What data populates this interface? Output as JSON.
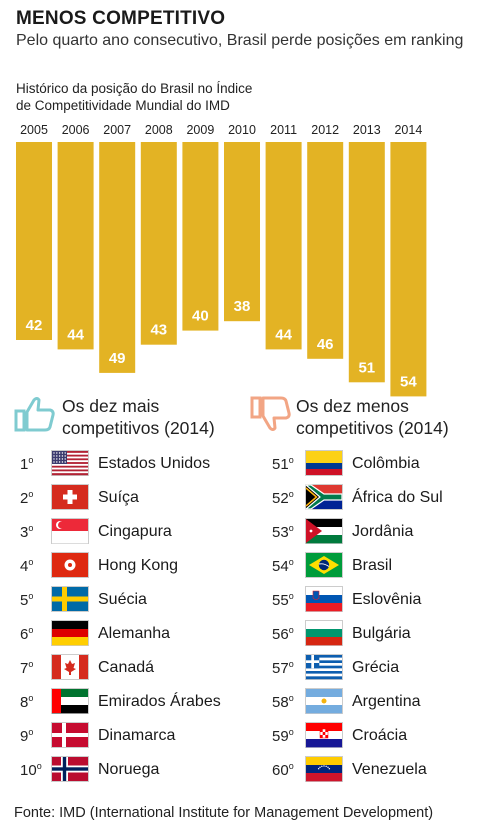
{
  "header": {
    "title": "MENOS COMPETITIVO",
    "subtitle": "Pelo quarto ano consecutivo, Brasil perde posições em ranking"
  },
  "chart_data": {
    "type": "bar",
    "title": "Histórico da posição do Brasil no Índice de Competitividade Mundial do IMD",
    "title_lines": [
      "Histórico da posição do Brasil no Índice",
      "de Competitividade Mundial do IMD"
    ],
    "categories": [
      "2005",
      "2006",
      "2007",
      "2008",
      "2009",
      "2010",
      "2011",
      "2012",
      "2013",
      "2014"
    ],
    "values": [
      42,
      44,
      49,
      43,
      40,
      38,
      44,
      46,
      51,
      54
    ],
    "value_labels": [
      "42",
      "44",
      "49",
      "43",
      "40",
      "38",
      "44",
      "46",
      "51",
      "54"
    ],
    "orientation": "vertical-downward",
    "bar_color": "#e3b324",
    "grid": false,
    "legend": false
  },
  "top_list": {
    "title_lines": [
      "Os dez mais",
      "competitivos (2014)"
    ],
    "icon": "thumbs-up-icon",
    "icon_color": "#7fcbd0",
    "items": [
      {
        "rank": "1",
        "ord": "o",
        "country": "Estados Unidos",
        "flag": "us"
      },
      {
        "rank": "2",
        "ord": "o",
        "country": "Suíça",
        "flag": "ch"
      },
      {
        "rank": "3",
        "ord": "o",
        "country": "Cingapura",
        "flag": "sg"
      },
      {
        "rank": "4",
        "ord": "o",
        "country": "Hong Kong",
        "flag": "hk"
      },
      {
        "rank": "5",
        "ord": "o",
        "country": "Suécia",
        "flag": "se"
      },
      {
        "rank": "6",
        "ord": "o",
        "country": "Alemanha",
        "flag": "de"
      },
      {
        "rank": "7",
        "ord": "o",
        "country": "Canadá",
        "flag": "ca"
      },
      {
        "rank": "8",
        "ord": "o",
        "country": "Emirados Árabes",
        "flag": "ae"
      },
      {
        "rank": "9",
        "ord": "o",
        "country": "Dinamarca",
        "flag": "dk"
      },
      {
        "rank": "10",
        "ord": "o",
        "country": "Noruega",
        "flag": "no"
      }
    ]
  },
  "bottom_list": {
    "title_lines": [
      "Os dez menos",
      "competitivos (2014)"
    ],
    "icon": "thumbs-down-icon",
    "icon_color": "#f2a584",
    "items": [
      {
        "rank": "51",
        "ord": "o",
        "country": "Colômbia",
        "flag": "co"
      },
      {
        "rank": "52",
        "ord": "o",
        "country": "África do Sul",
        "flag": "za"
      },
      {
        "rank": "53",
        "ord": "o",
        "country": "Jordânia",
        "flag": "jo"
      },
      {
        "rank": "54",
        "ord": "o",
        "country": "Brasil",
        "flag": "br"
      },
      {
        "rank": "55",
        "ord": "o",
        "country": "Eslovênia",
        "flag": "si"
      },
      {
        "rank": "56",
        "ord": "o",
        "country": "Bulgária",
        "flag": "bg"
      },
      {
        "rank": "57",
        "ord": "o",
        "country": "Grécia",
        "flag": "gr"
      },
      {
        "rank": "58",
        "ord": "o",
        "country": "Argentina",
        "flag": "ar"
      },
      {
        "rank": "59",
        "ord": "o",
        "country": "Croácia",
        "flag": "hr"
      },
      {
        "rank": "60",
        "ord": "o",
        "country": "Venezuela",
        "flag": "ve"
      }
    ]
  },
  "footer": {
    "source": "Fonte: IMD (International Institute for Management Development)"
  }
}
